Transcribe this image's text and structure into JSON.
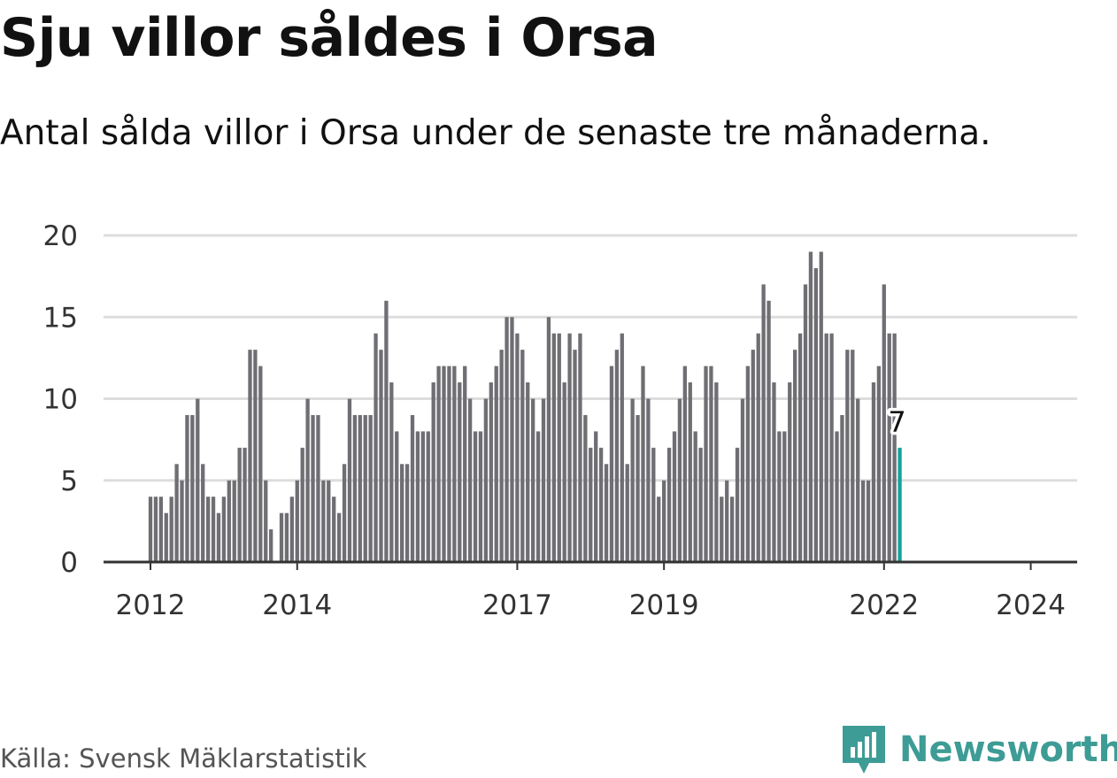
{
  "header": {
    "title": "Sju villor såldes i Orsa",
    "subtitle": "Antal sålda villor i Orsa under de senaste tre månaderna."
  },
  "footer": {
    "source": "Källa: Svensk Mäklarstatistik",
    "brand": "Newsworthy"
  },
  "colors": {
    "bar": "#6e6e73",
    "highlight": "#13a39a",
    "grid": "#dddddd",
    "axis": "#333333",
    "brand": "#3d9c95"
  },
  "chart_data": {
    "type": "bar",
    "title": "Sju villor såldes i Orsa",
    "ylabel": "",
    "xlabel": "",
    "ylim": [
      0,
      20
    ],
    "yticks": [
      0,
      5,
      10,
      15,
      20
    ],
    "grid": true,
    "start": "2012-01",
    "x_ticks": [
      {
        "label": "2012",
        "index": 0
      },
      {
        "label": "2014",
        "index": 28
      },
      {
        "label": "2017",
        "index": 70
      },
      {
        "label": "2019",
        "index": 98
      },
      {
        "label": "2022",
        "index": 140
      },
      {
        "label": "2024",
        "index": 168
      }
    ],
    "values": [
      4,
      4,
      4,
      3,
      4,
      6,
      5,
      9,
      9,
      10,
      6,
      4,
      4,
      3,
      4,
      5,
      5,
      7,
      7,
      13,
      13,
      12,
      5,
      2,
      0,
      3,
      3,
      4,
      5,
      7,
      10,
      9,
      9,
      5,
      5,
      4,
      3,
      6,
      10,
      9,
      9,
      9,
      9,
      14,
      13,
      16,
      11,
      8,
      6,
      6,
      9,
      8,
      8,
      8,
      11,
      12,
      12,
      12,
      12,
      11,
      12,
      10,
      8,
      8,
      10,
      11,
      12,
      13,
      15,
      15,
      14,
      13,
      11,
      10,
      8,
      10,
      15,
      14,
      14,
      11,
      14,
      13,
      14,
      9,
      7,
      8,
      7,
      6,
      12,
      13,
      14,
      6,
      10,
      9,
      12,
      10,
      7,
      4,
      5,
      7,
      8,
      10,
      12,
      11,
      8,
      7,
      12,
      12,
      11,
      4,
      5,
      4,
      7,
      10,
      12,
      13,
      14,
      17,
      16,
      11,
      8,
      8,
      11,
      13,
      14,
      17,
      19,
      18,
      19,
      14,
      14,
      8,
      9,
      13,
      13,
      10,
      5,
      5,
      11,
      12,
      17,
      14,
      14,
      7
    ],
    "highlight_last": true,
    "last_value_label": "7"
  }
}
